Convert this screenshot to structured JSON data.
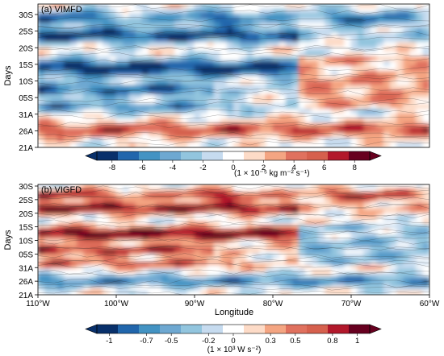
{
  "chart_data": [
    {
      "type": "heatmap",
      "panel_title": "(a) VIMFD",
      "ylabel": "Days",
      "y_tick_labels": [
        "30S",
        "25S",
        "20S",
        "15S",
        "10S",
        "05S",
        "31A",
        "26A",
        "21A"
      ],
      "x_range": [
        -110,
        -60
      ],
      "colorbar": {
        "tick_labels": [
          "-8",
          "-6",
          "-4",
          "-2",
          "0",
          "2",
          "4",
          "6",
          "8"
        ],
        "range": [
          -9,
          9
        ],
        "unit_label": "(1 × 10⁻⁵ kg m⁻² s⁻¹)"
      },
      "features": [
        {
          "days": "28S–30S",
          "lon": [
            -110,
            -60
          ],
          "value": -6
        },
        {
          "days": "20S–25S",
          "lon": [
            -110,
            -78
          ],
          "value": -7
        },
        {
          "days": "12S–16S",
          "lon": [
            -110,
            -77
          ],
          "value": -8
        },
        {
          "days": "31A–04S",
          "lon": [
            -110,
            -88
          ],
          "value": -8
        },
        {
          "days": "05S–15S",
          "lon": [
            -77,
            -60
          ],
          "value": 4
        },
        {
          "days": "21A–26A",
          "lon": [
            -110,
            -60
          ],
          "value": 4
        }
      ]
    },
    {
      "type": "heatmap",
      "panel_title": "(b) VIGFD",
      "ylabel": "Days",
      "xlabel": "Longitude",
      "y_tick_labels": [
        "30S",
        "25S",
        "20S",
        "15S",
        "10S",
        "05S",
        "31A",
        "26A",
        "21A"
      ],
      "x_tick_labels": [
        "110°W",
        "100°W",
        "90°W",
        "80°W",
        "70°W",
        "60°W"
      ],
      "x_range": [
        -110,
        -60
      ],
      "colorbar": {
        "tick_labels": [
          "-1",
          "-0.7",
          "-0.5",
          "-0.2",
          "0",
          "0.3",
          "0.5",
          "0.8",
          "1"
        ],
        "range": [
          -1.1,
          1.1
        ],
        "unit_label": "(1 × 10³ W s⁻²)"
      },
      "features": [
        {
          "days": "28S–30S",
          "lon": [
            -110,
            -60
          ],
          "value": 0.9
        },
        {
          "days": "20S–25S",
          "lon": [
            -110,
            -78
          ],
          "value": 0.9
        },
        {
          "days": "12S–16S",
          "lon": [
            -110,
            -77
          ],
          "value": 1.0
        },
        {
          "days": "31A–04S",
          "lon": [
            -110,
            -88
          ],
          "value": 0.9
        },
        {
          "days": "05S–15S",
          "lon": [
            -77,
            -60
          ],
          "value": -0.3
        },
        {
          "days": "21A–26A",
          "lon": [
            -110,
            -60
          ],
          "value": 0.8
        }
      ]
    }
  ]
}
